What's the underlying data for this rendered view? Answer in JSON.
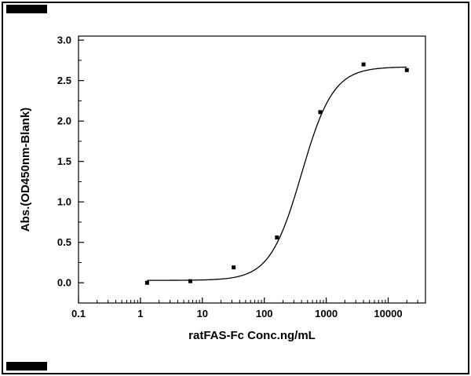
{
  "figure": {
    "background": "#ffffff",
    "border_color": "#000000"
  },
  "chart_data": {
    "type": "scatter",
    "title": "",
    "xlabel": "ratFAS-Fc Conc.ng/mL",
    "ylabel": "Abs.(OD450nm-Blank)",
    "x_scale": "log10",
    "xlim": [
      0.1,
      40000
    ],
    "ylim": [
      -0.25,
      3.05
    ],
    "x_ticks": [
      0.1,
      1,
      10,
      100,
      1000,
      10000
    ],
    "x_tick_labels": [
      "0.1",
      "1",
      "10",
      "100",
      "1000",
      "10000"
    ],
    "y_ticks": [
      0.0,
      0.5,
      1.0,
      1.5,
      2.0,
      2.5,
      3.0
    ],
    "y_tick_labels": [
      "0.0",
      "0.5",
      "1.0",
      "1.5",
      "2.0",
      "2.5",
      "3.0"
    ],
    "grid": false,
    "legend": "none",
    "marker": {
      "shape": "square",
      "size": 5,
      "color": "#000000"
    },
    "line_color": "#000000",
    "points": [
      {
        "x": 1.28,
        "y": 0.0
      },
      {
        "x": 6.4,
        "y": 0.02
      },
      {
        "x": 32,
        "y": 0.19
      },
      {
        "x": 160,
        "y": 0.56
      },
      {
        "x": 800,
        "y": 2.11
      },
      {
        "x": 4000,
        "y": 2.7
      },
      {
        "x": 20000,
        "y": 2.63
      }
    ],
    "fit_curve": {
      "model": "4PL",
      "bottom": 0.03,
      "top": 2.67,
      "ec50": 400,
      "hill": 1.7,
      "x_start": 1.28,
      "x_end": 20000
    }
  }
}
